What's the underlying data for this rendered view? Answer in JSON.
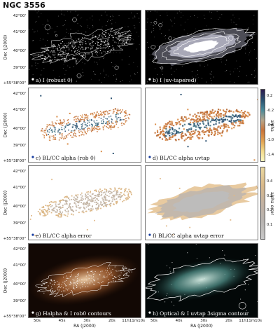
{
  "figure": {
    "title": "NGC 3556",
    "dec_axis_label": "Dec (J2000)",
    "ra_axis_label": "RA (J2000)",
    "dec_ticks": [
      "42°00'",
      "41°00'",
      "40°00'",
      "39°00'",
      "+55°38'00\""
    ],
    "ra_ticks_left": [
      "50s",
      "45s",
      "30s",
      "20s",
      "11h11m10s"
    ],
    "ra_ticks_right": [
      "50s",
      "40s",
      "30s",
      "20s",
      "11h11m10s"
    ]
  },
  "panels": [
    {
      "id": "a",
      "label": "a) I (robust 0)",
      "style": "radio"
    },
    {
      "id": "b",
      "label": "b) I (uv-tapered)",
      "style": "radio-tapered"
    },
    {
      "id": "c",
      "label": "c) BL/CC alpha (rob 0)",
      "style": "alpha"
    },
    {
      "id": "d",
      "label": "d) BL/CC alpha uvtap",
      "style": "alpha-tapered"
    },
    {
      "id": "e",
      "label": "e) BL/CC alpha error",
      "style": "error"
    },
    {
      "id": "f",
      "label": "f) BL/CC alpha uvtap error",
      "style": "error-tapered"
    },
    {
      "id": "g",
      "label": "g) Halpha & I rob0 contours",
      "style": "halpha"
    },
    {
      "id": "h",
      "label": "h) Optical & I uvtap 3sigma contour",
      "style": "optical"
    }
  ],
  "colorbars": [
    {
      "id": "alpha",
      "label": "alpha",
      "ticks": [
        "0.2",
        "-0.2",
        "-0.6",
        "-1.0",
        "-1.4"
      ],
      "range": [
        -1.6,
        0.4
      ],
      "colors": [
        "#2d1b4e",
        "#2a5070",
        "#4a8a9a",
        "#b7a58a",
        "#c8733a",
        "#e0a050",
        "#f2d98a",
        "#fbf7c0"
      ]
    },
    {
      "id": "alpha-error",
      "label": "alpha error",
      "ticks": [
        "0.4",
        "0.3",
        "0.2",
        "0.1"
      ],
      "range": [
        0.0,
        0.5
      ],
      "colors": [
        "#ead8a0",
        "#d9b98a",
        "#c3b2a2",
        "#b7b3b0",
        "#c8c8c8"
      ]
    }
  ]
}
